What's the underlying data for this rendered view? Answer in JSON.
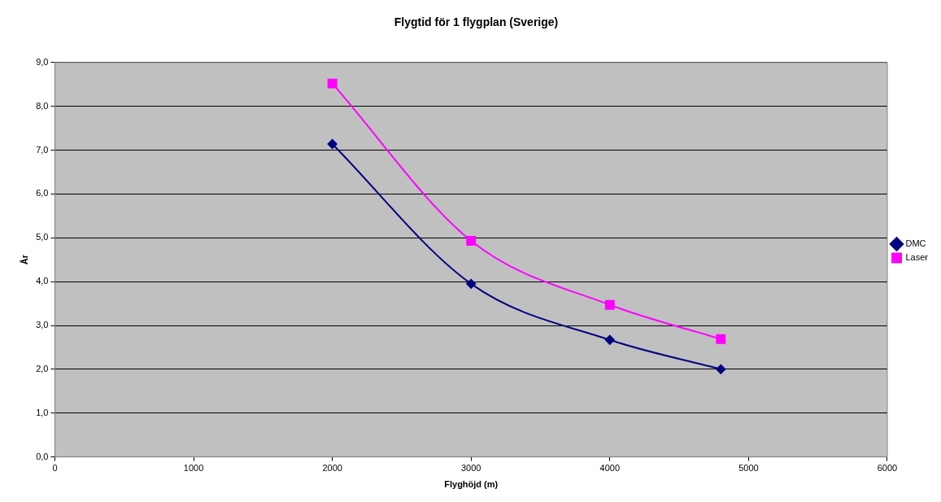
{
  "chart_data": {
    "type": "line",
    "title": "Flygtid för 1 flygplan (Sverige)",
    "xlabel": "Flyghöjd (m)",
    "ylabel": "År",
    "series": [
      {
        "name": "DMC",
        "color": "#000080",
        "marker": "diamond",
        "x": [
          2000,
          3000,
          4000,
          4800
        ],
        "values": [
          7.14,
          3.95,
          2.67,
          2.0
        ]
      },
      {
        "name": "Laser",
        "color": "#ff00ff",
        "marker": "square",
        "x": [
          2000,
          3000,
          4000,
          4800
        ],
        "values": [
          8.52,
          4.93,
          3.47,
          2.69
        ]
      }
    ],
    "xlim": [
      0,
      6000
    ],
    "xticks": [
      0,
      1000,
      2000,
      3000,
      4000,
      5000,
      6000
    ],
    "ylim": [
      0,
      9
    ],
    "yticks": [
      {
        "value": 0,
        "label": "0,0"
      },
      {
        "value": 1,
        "label": "1,0"
      },
      {
        "value": 2,
        "label": "2,0"
      },
      {
        "value": 3,
        "label": "3,0"
      },
      {
        "value": 4,
        "label": "4,0"
      },
      {
        "value": 5,
        "label": "5,0"
      },
      {
        "value": 6,
        "label": "6,0"
      },
      {
        "value": 7,
        "label": "7,0"
      },
      {
        "value": 8,
        "label": "8,0"
      },
      {
        "value": 9,
        "label": "9,0"
      }
    ],
    "grid": "y",
    "legend": "right"
  }
}
